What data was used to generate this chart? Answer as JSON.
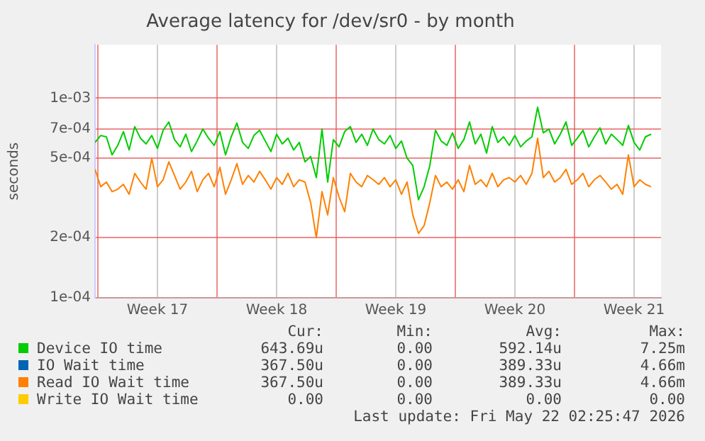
{
  "chart_data": {
    "type": "line",
    "title": "Average latency for /dev/sr0 - by month",
    "ylabel": "seconds",
    "x": [
      "2026-04-19T20:00",
      "2026-04-20T04:00",
      "2026-04-20T12:00",
      "2026-04-20T20:00",
      "2026-04-21T04:00",
      "2026-04-21T12:00",
      "2026-04-21T20:00",
      "2026-04-22T04:00",
      "2026-04-22T12:00",
      "2026-04-22T20:00",
      "2026-04-23T04:00",
      "2026-04-23T12:00",
      "2026-04-23T20:00",
      "2026-04-24T04:00",
      "2026-04-24T12:00",
      "2026-04-24T20:00",
      "2026-04-25T04:00",
      "2026-04-25T12:00",
      "2026-04-25T20:00",
      "2026-04-26T04:00",
      "2026-04-26T12:00",
      "2026-04-26T20:00",
      "2026-04-27T04:00",
      "2026-04-27T12:00",
      "2026-04-27T20:00",
      "2026-04-28T04:00",
      "2026-04-28T12:00",
      "2026-04-28T20:00",
      "2026-04-29T04:00",
      "2026-04-29T12:00",
      "2026-04-29T20:00",
      "2026-04-30T04:00",
      "2026-04-30T12:00",
      "2026-04-30T20:00",
      "2026-05-01T04:00",
      "2026-05-01T12:00",
      "2026-05-01T20:00",
      "2026-05-02T04:00",
      "2026-05-02T12:00",
      "2026-05-02T20:00",
      "2026-05-03T04:00",
      "2026-05-03T12:00",
      "2026-05-03T20:00",
      "2026-05-04T04:00",
      "2026-05-04T12:00",
      "2026-05-04T20:00",
      "2026-05-05T04:00",
      "2026-05-05T12:00",
      "2026-05-05T20:00",
      "2026-05-06T04:00",
      "2026-05-06T12:00",
      "2026-05-06T20:00",
      "2026-05-07T04:00",
      "2026-05-07T12:00",
      "2026-05-07T20:00",
      "2026-05-08T04:00",
      "2026-05-08T12:00",
      "2026-05-08T20:00",
      "2026-05-09T04:00",
      "2026-05-09T12:00",
      "2026-05-09T20:00",
      "2026-05-10T04:00",
      "2026-05-10T12:00",
      "2026-05-10T20:00",
      "2026-05-11T04:00",
      "2026-05-11T12:00",
      "2026-05-11T20:00",
      "2026-05-12T04:00",
      "2026-05-12T12:00",
      "2026-05-12T20:00",
      "2026-05-13T04:00",
      "2026-05-13T12:00",
      "2026-05-13T20:00",
      "2026-05-14T04:00",
      "2026-05-14T12:00",
      "2026-05-14T20:00",
      "2026-05-15T04:00",
      "2026-05-15T12:00",
      "2026-05-15T20:00",
      "2026-05-16T04:00",
      "2026-05-16T12:00",
      "2026-05-16T20:00",
      "2026-05-17T04:00",
      "2026-05-17T12:00",
      "2026-05-17T20:00",
      "2026-05-18T04:00",
      "2026-05-18T12:00",
      "2026-05-18T20:00",
      "2026-05-19T04:00",
      "2026-05-19T12:00",
      "2026-05-19T20:00",
      "2026-05-20T04:00",
      "2026-05-20T12:00",
      "2026-05-20T20:00",
      "2026-05-21T04:00",
      "2026-05-21T12:00",
      "2026-05-21T20:00",
      "2026-05-22T04:00",
      "2026-05-22T12:00"
    ],
    "series": [
      {
        "name": "Device IO time",
        "color": "#00cc00",
        "values": [
          0.0006,
          0.00065,
          0.00064,
          0.00052,
          0.00058,
          0.00068,
          0.00055,
          0.00072,
          0.00063,
          0.00059,
          0.00065,
          0.00056,
          0.00069,
          0.00076,
          0.00062,
          0.00057,
          0.00066,
          0.00054,
          0.00061,
          0.0007,
          0.00063,
          0.00058,
          0.00068,
          0.00052,
          0.00064,
          0.00075,
          0.0006,
          0.00056,
          0.00065,
          0.00069,
          0.00061,
          0.00054,
          0.00066,
          0.00059,
          0.00063,
          0.00055,
          0.0006,
          0.00048,
          0.00051,
          0.0004,
          0.0007,
          0.00038,
          0.00062,
          0.00057,
          0.00068,
          0.00072,
          0.0006,
          0.00066,
          0.00058,
          0.0007,
          0.00062,
          0.00059,
          0.00065,
          0.00056,
          0.00061,
          0.0005,
          0.00046,
          0.00031,
          0.00036,
          0.00046,
          0.00069,
          0.00061,
          0.00058,
          0.00067,
          0.00056,
          0.00062,
          0.00076,
          0.00059,
          0.00066,
          0.00053,
          0.00072,
          0.0006,
          0.00064,
          0.00058,
          0.00065,
          0.00057,
          0.00061,
          0.00064,
          0.0009,
          0.00067,
          0.0007,
          0.00059,
          0.00066,
          0.00076,
          0.00058,
          0.00063,
          0.00069,
          0.00057,
          0.00064,
          0.00071,
          0.00059,
          0.00066,
          0.00062,
          0.00058,
          0.00073,
          0.0006,
          0.00055,
          0.00064,
          0.00066
        ]
      },
      {
        "name": "IO Wait time",
        "color": "#0066b3",
        "values": [
          null,
          null,
          null,
          null,
          null,
          null,
          null,
          null,
          null,
          null,
          null,
          null,
          null,
          null,
          null,
          null,
          null,
          null,
          null,
          null,
          null,
          null,
          null,
          null,
          null,
          null,
          null,
          null,
          null,
          null,
          null,
          null,
          null,
          null,
          null,
          null,
          null,
          null,
          null,
          null,
          null,
          null,
          null,
          null,
          null,
          null,
          null,
          null,
          null,
          null,
          null,
          null,
          null,
          null,
          null,
          null,
          null,
          null,
          null,
          null,
          null,
          null,
          null,
          null,
          null,
          null,
          null,
          null,
          null,
          null,
          null,
          null,
          null,
          null,
          null,
          null,
          null,
          null,
          null,
          null,
          null,
          null,
          null,
          null,
          null,
          null,
          null,
          null,
          null,
          null,
          null,
          null,
          null,
          null,
          null,
          null,
          null,
          null,
          null
        ]
      },
      {
        "name": "Read IO Wait time",
        "color": "#ff8000",
        "values": [
          0.00044,
          0.00036,
          0.00038,
          0.00034,
          0.00035,
          0.00037,
          0.00033,
          0.00042,
          0.00038,
          0.00035,
          0.0005,
          0.00036,
          0.00039,
          0.00048,
          0.00041,
          0.00035,
          0.00038,
          0.00043,
          0.00034,
          0.00039,
          0.00042,
          0.00036,
          0.00045,
          0.00033,
          0.00039,
          0.00047,
          0.00037,
          0.00041,
          0.00038,
          0.00043,
          0.00039,
          0.00035,
          0.0004,
          0.00037,
          0.00042,
          0.00036,
          0.00039,
          0.00038,
          0.0003,
          0.0002,
          0.00034,
          0.00026,
          0.0004,
          0.00032,
          0.00027,
          0.00042,
          0.00038,
          0.00036,
          0.00041,
          0.00039,
          0.00037,
          0.0004,
          0.00036,
          0.00039,
          0.00033,
          0.00038,
          0.00026,
          0.00021,
          0.00023,
          0.0003,
          0.00041,
          0.00036,
          0.00038,
          0.00035,
          0.00039,
          0.00034,
          0.00046,
          0.00037,
          0.00039,
          0.00036,
          0.00042,
          0.00036,
          0.00039,
          0.0004,
          0.00038,
          0.00041,
          0.00037,
          0.00042,
          0.00063,
          0.0004,
          0.00043,
          0.00038,
          0.0004,
          0.00044,
          0.00037,
          0.00039,
          0.00042,
          0.00036,
          0.00039,
          0.00041,
          0.00038,
          0.00035,
          0.00037,
          0.00033,
          0.00052,
          0.00036,
          0.00039,
          0.00037,
          0.00036
        ]
      },
      {
        "name": "Write IO Wait time",
        "color": "#ffcc00",
        "values": [
          null,
          null,
          null,
          null,
          null,
          null,
          null,
          null,
          null,
          null,
          null,
          null,
          null,
          null,
          null,
          null,
          null,
          null,
          null,
          null,
          null,
          null,
          null,
          null,
          null,
          null,
          null,
          null,
          null,
          null,
          null,
          null,
          null,
          null,
          null,
          null,
          null,
          null,
          null,
          null,
          null,
          null,
          null,
          null,
          null,
          null,
          null,
          null,
          null,
          null,
          null,
          null,
          null,
          null,
          null,
          null,
          null,
          null,
          null,
          null,
          null,
          null,
          null,
          null,
          null,
          null,
          null,
          null,
          null,
          null,
          null,
          null,
          null,
          null,
          null,
          null,
          null,
          null,
          null,
          null,
          null,
          null,
          null,
          null,
          null,
          null,
          null,
          null,
          null,
          null,
          null,
          null,
          null,
          null,
          null,
          null,
          null,
          null,
          null
        ]
      }
    ],
    "log": "y",
    "ylim": [
      0.0001,
      0.00185
    ],
    "yticks": [
      {
        "value": 0.0001,
        "label": "1e-04"
      },
      {
        "value": 0.0002,
        "label": "2e-04"
      },
      {
        "value": 0.0005,
        "label": "5e-04"
      },
      {
        "value": 0.0007,
        "label": "7e-04"
      },
      {
        "value": 0.001,
        "label": "1e-03"
      }
    ],
    "xlim": [
      "2026-04-19T20:00",
      "2026-05-23T02:00"
    ],
    "xticks": [
      {
        "value": "2026-04-20T00:00",
        "label": null
      },
      {
        "value": "2026-04-23T12:00",
        "label": "Week 17"
      },
      {
        "value": "2026-04-27T00:00",
        "label": null
      },
      {
        "value": "2026-04-30T12:00",
        "label": "Week 18"
      },
      {
        "value": "2026-05-04T00:00",
        "label": null
      },
      {
        "value": "2026-05-07T12:00",
        "label": "Week 19"
      },
      {
        "value": "2026-05-11T00:00",
        "label": null
      },
      {
        "value": "2026-05-14T12:00",
        "label": "Week 20"
      },
      {
        "value": "2026-05-18T00:00",
        "label": null
      },
      {
        "value": "2026-05-21T12:00",
        "label": "Week 21"
      }
    ],
    "grid": true,
    "legend": "bottom",
    "marker": "none",
    "line_style": "solid",
    "annotations": [
      "Cur:",
      "Min:",
      "Avg:",
      "Max:",
      "643.69u",
      "0.00",
      "592.14u",
      "7.25m",
      "367.50u",
      "0.00",
      "389.33u",
      "4.66m",
      "367.50u",
      "0.00",
      "389.33u",
      "4.66m",
      "0.00",
      "0.00",
      "0.00",
      "0.00",
      "Last update: Fri May 22 02:25:47 2026"
    ]
  }
}
